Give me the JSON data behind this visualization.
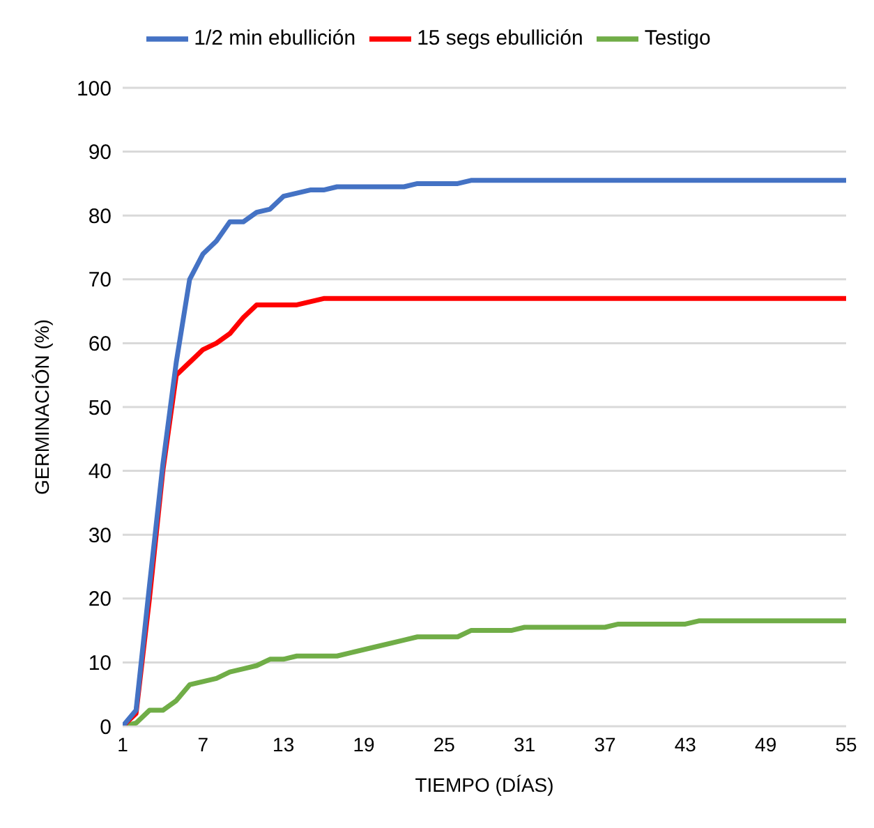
{
  "chart_data": {
    "type": "line",
    "xlabel": "TIEMPO (DÍAS)",
    "ylabel": "GERMINACIÓN (%)",
    "xlim": [
      1,
      55
    ],
    "xticks": [
      1,
      7,
      13,
      19,
      25,
      31,
      37,
      43,
      49,
      55
    ],
    "ylim": [
      0,
      100
    ],
    "yticks": [
      0,
      10,
      20,
      30,
      40,
      50,
      60,
      70,
      80,
      90,
      100
    ],
    "grid": "y",
    "legend": "top",
    "marker": "none",
    "line_style": "solid",
    "series": [
      {
        "name": "Testigo",
        "color": "#70ad47",
        "x": [
          1,
          2,
          3,
          4,
          5,
          6,
          7,
          8,
          9,
          10,
          11,
          12,
          13,
          14,
          17,
          18,
          20,
          22,
          23,
          26,
          27,
          30,
          31,
          37,
          38,
          43,
          44,
          55
        ],
        "values": [
          0,
          0.5,
          2.5,
          2.5,
          4,
          6.5,
          7,
          7.5,
          8.5,
          9,
          9.5,
          10.5,
          10.5,
          11,
          11,
          11.5,
          12.5,
          13.5,
          14,
          14,
          15,
          15,
          15.5,
          15.5,
          16,
          16,
          16.5,
          16.5
        ]
      },
      {
        "name": "15 segs ebullición",
        "color": "#ff0000",
        "x": [
          1,
          2,
          3,
          4,
          5,
          6,
          7,
          8,
          9,
          10,
          11,
          14,
          15,
          16,
          55
        ],
        "values": [
          0,
          2,
          20,
          40,
          55,
          57,
          59,
          60,
          61.5,
          64,
          66,
          66,
          66.5,
          67,
          67
        ]
      },
      {
        "name": "1/2 min ebullición",
        "color": "#4472c4",
        "x": [
          1,
          2,
          3,
          4,
          5,
          6,
          7,
          8,
          9,
          10,
          11,
          12,
          13,
          14,
          15,
          16,
          17,
          22,
          23,
          26,
          27,
          55
        ],
        "values": [
          0,
          2.5,
          22,
          41,
          57,
          70,
          74,
          76,
          79,
          79,
          80.5,
          81,
          83,
          83.5,
          84,
          84,
          84.5,
          84.5,
          85,
          85,
          85.5,
          85.5
        ]
      }
    ]
  }
}
